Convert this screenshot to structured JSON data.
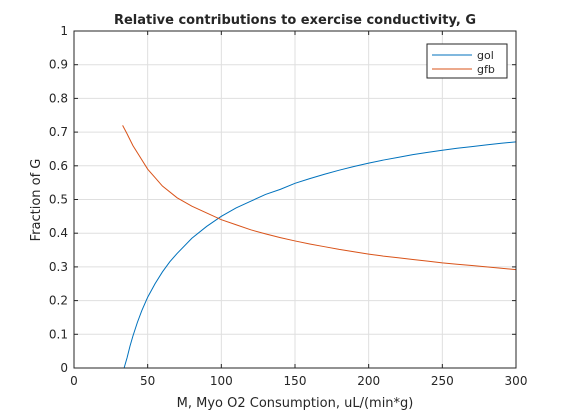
{
  "chart_data": {
    "type": "line",
    "title": "Relative contributions to exercise conductivity, G",
    "xlabel": "M, Myo O2 Consumption, uL/(min*g)",
    "ylabel": "Fraction of G",
    "xlim": [
      0,
      300
    ],
    "ylim": [
      0,
      1
    ],
    "xticks": [
      0,
      50,
      100,
      150,
      200,
      250,
      300
    ],
    "yticks": [
      0,
      0.1,
      0.2,
      0.3,
      0.4,
      0.5,
      0.6,
      0.7,
      0.8,
      0.9,
      1
    ],
    "grid": true,
    "legend_position": "top-right",
    "series": [
      {
        "name": "gol",
        "color": "#0072BD",
        "x": [
          34,
          36,
          38,
          40,
          43,
          46,
          50,
          55,
          60,
          65,
          70,
          80,
          90,
          100,
          110,
          120,
          130,
          140,
          150,
          160,
          170,
          180,
          190,
          200,
          210,
          220,
          230,
          240,
          250,
          260,
          270,
          280,
          290,
          300
        ],
        "y": [
          0.0,
          0.03,
          0.065,
          0.095,
          0.135,
          0.17,
          0.21,
          0.25,
          0.285,
          0.315,
          0.34,
          0.385,
          0.42,
          0.45,
          0.475,
          0.495,
          0.515,
          0.53,
          0.548,
          0.562,
          0.575,
          0.587,
          0.598,
          0.608,
          0.617,
          0.625,
          0.633,
          0.64,
          0.646,
          0.652,
          0.657,
          0.662,
          0.667,
          0.671
        ]
      },
      {
        "name": "gfb",
        "color": "#D95319",
        "x": [
          33,
          36,
          40,
          45,
          50,
          55,
          60,
          70,
          80,
          90,
          100,
          110,
          120,
          130,
          140,
          150,
          160,
          170,
          180,
          190,
          200,
          210,
          220,
          230,
          240,
          250,
          260,
          270,
          280,
          290,
          300
        ],
        "y": [
          0.72,
          0.695,
          0.66,
          0.625,
          0.59,
          0.565,
          0.54,
          0.505,
          0.48,
          0.46,
          0.44,
          0.425,
          0.41,
          0.398,
          0.387,
          0.377,
          0.368,
          0.36,
          0.352,
          0.345,
          0.338,
          0.332,
          0.327,
          0.322,
          0.317,
          0.312,
          0.308,
          0.304,
          0.3,
          0.296,
          0.292
        ]
      }
    ]
  }
}
